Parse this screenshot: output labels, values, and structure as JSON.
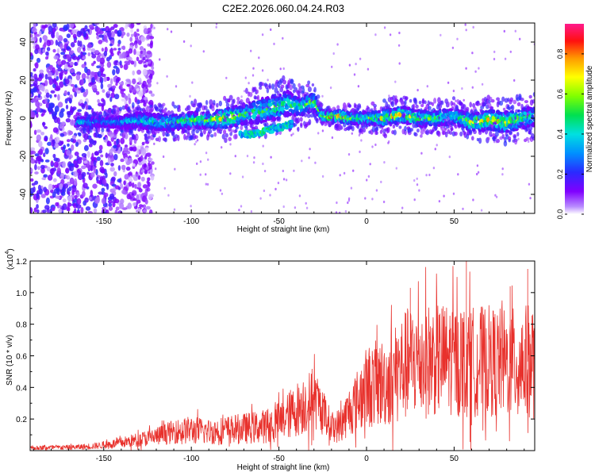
{
  "figure_title": "C2E2.2026.060.04.24.R03",
  "chart_data": [
    {
      "type": "heatmap",
      "title": "C2E2.2026.060.04.24.R03",
      "xlabel": "Height of straight line (km)",
      "ylabel": "Frequency (Hz)",
      "xlim": [
        -192,
        96
      ],
      "ylim": [
        -50,
        50
      ],
      "x_ticks": [
        -150,
        -100,
        -50,
        0,
        50
      ],
      "x_tick_labels": [
        "-150",
        "-100",
        "-50",
        "0",
        "50"
      ],
      "y_ticks": [
        -40,
        -20,
        0,
        20,
        40
      ],
      "y_tick_labels": [
        "-40",
        "-20",
        "0",
        "20",
        "40"
      ],
      "colorbar": {
        "label": "Normalized spectral amplitude",
        "range": [
          0,
          0.95
        ],
        "ticks": [
          0.0,
          0.2,
          0.4,
          0.6,
          0.8
        ],
        "tick_labels": [
          "0.0",
          "0.2",
          "0.4",
          "0.6",
          "0.8"
        ],
        "colormap": "rainbow"
      },
      "ridge": {
        "description": "Main signal band centred near 0 Hz",
        "x": [
          -165,
          -150,
          -140,
          -130,
          -120,
          -110,
          -100,
          -90,
          -80,
          -70,
          -60,
          -50,
          -45,
          -40,
          -35,
          -30,
          -25,
          -20,
          -15,
          -10,
          -5,
          0,
          10,
          20,
          30,
          40,
          50,
          60,
          70,
          80,
          90,
          96
        ],
        "center_hz": [
          -2,
          -2,
          -2,
          -1,
          -2,
          -2,
          -1,
          -1,
          0,
          2,
          4,
          6,
          8,
          6,
          7,
          9,
          1,
          1,
          1,
          0,
          0,
          0,
          0,
          2,
          0,
          0,
          1,
          -2,
          -1,
          -2,
          0,
          1
        ],
        "half_width_hz": [
          2,
          2,
          3,
          4,
          4,
          4,
          4,
          4,
          5,
          5,
          6,
          6,
          6,
          5,
          5,
          4,
          2,
          2,
          3,
          3,
          3,
          3,
          4,
          4,
          4,
          4,
          4,
          4,
          5,
          5,
          5,
          5
        ],
        "peak_amplitude": [
          0.5,
          0.35,
          0.4,
          0.45,
          0.5,
          0.55,
          0.6,
          0.65,
          0.85,
          0.55,
          0.6,
          0.65,
          0.6,
          0.55,
          0.6,
          0.7,
          0.85,
          0.95,
          0.9,
          0.7,
          0.6,
          0.6,
          0.75,
          0.8,
          0.6,
          0.6,
          0.55,
          0.8,
          0.75,
          0.85,
          0.6,
          0.55
        ]
      },
      "secondary_branch": {
        "description": "Lower branch below the main band",
        "x": [
          -72,
          -65,
          -60,
          -55,
          -50,
          -45,
          -42
        ],
        "center_hz": [
          -9,
          -8,
          -7,
          -6,
          -5,
          -4,
          -3
        ],
        "peak_amplitude": [
          0.4,
          0.45,
          0.5,
          0.45,
          0.4,
          0.45,
          0.4
        ]
      },
      "noise_region": {
        "description": "Broadband low-amplitude noise at low heights",
        "x_range": [
          -192,
          -130
        ],
        "amplitude": 0.15
      }
    },
    {
      "type": "line",
      "xlabel": "Height of straight line (km)",
      "ylabel": "SNR (10 * v/v)",
      "y_multiplier_label": "(x10",
      "y_multiplier_exponent": "4",
      "y_multiplier_close": ")",
      "xlim": [
        -192,
        96
      ],
      "ylim": [
        0,
        12000
      ],
      "x_ticks": [
        -150,
        -100,
        -50,
        0,
        50
      ],
      "x_tick_labels": [
        "-150",
        "-100",
        "-50",
        "0",
        "50"
      ],
      "y_ticks": [
        2000,
        4000,
        6000,
        8000,
        10000,
        12000
      ],
      "y_tick_labels": [
        "0.2",
        "0.4",
        "0.6",
        "0.8",
        "1.0",
        "1.2"
      ],
      "series": [
        {
          "name": "SNR",
          "color": "#e8312c",
          "x": [
            -192,
            -180,
            -170,
            -160,
            -150,
            -140,
            -130,
            -120,
            -110,
            -100,
            -90,
            -80,
            -70,
            -60,
            -50,
            -45,
            -40,
            -35,
            -30,
            -25,
            -20,
            -15,
            -10,
            -5,
            0,
            5,
            10,
            15,
            20,
            25,
            30,
            35,
            40,
            50,
            60,
            70,
            80,
            90,
            96
          ],
          "y_mean": [
            150,
            200,
            200,
            250,
            350,
            500,
            700,
            900,
            1200,
            1300,
            1200,
            1300,
            1400,
            1500,
            1800,
            2200,
            2600,
            3000,
            3200,
            2600,
            1500,
            1600,
            2500,
            3200,
            4000,
            4200,
            4300,
            4700,
            5200,
            5600,
            5800,
            5700,
            5800,
            5800,
            5600,
            5700,
            5500,
            5600,
            5700
          ],
          "y_spread": [
            150,
            200,
            200,
            250,
            300,
            450,
            600,
            800,
            1000,
            1200,
            1100,
            1200,
            1300,
            1400,
            1700,
            2000,
            2300,
            2600,
            2600,
            1800,
            1300,
            1500,
            2100,
            2700,
            3500,
            3700,
            3800,
            4200,
            4600,
            4900,
            5000,
            4900,
            4800,
            4800,
            4700,
            4700,
            4600,
            4800,
            5000
          ],
          "max_value": 12000
        }
      ]
    }
  ]
}
